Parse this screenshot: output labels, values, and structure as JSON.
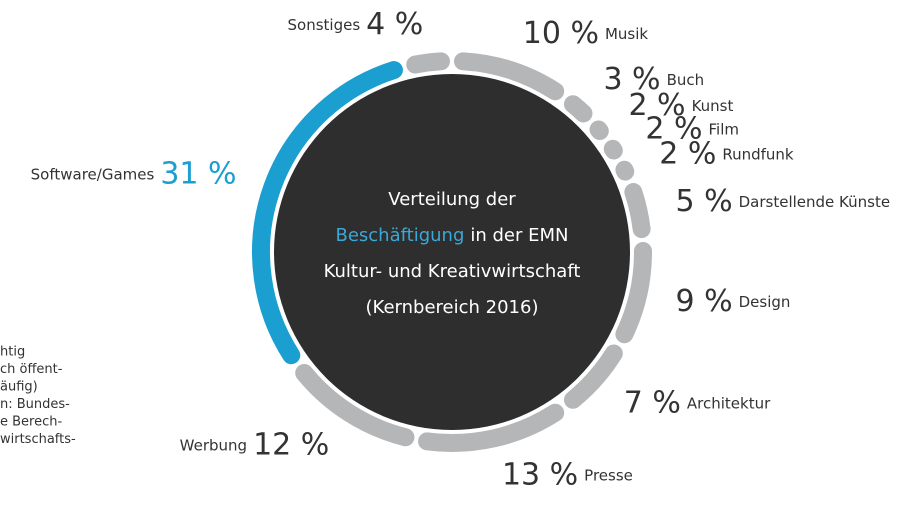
{
  "chart_data": {
    "type": "donut",
    "title_lines": [
      {
        "text": "Verteilung der"
      },
      {
        "highlight": "Beschäftigung",
        "text": "in der EMN"
      },
      {
        "text": "Kultur- und Kreativwirtschaft"
      },
      {
        "text": "(Kernbereich 2016)"
      }
    ],
    "highlight_color": "#3aa8d8",
    "categories": [
      "Musik",
      "Buch",
      "Kunst",
      "Film",
      "Rundfunk",
      "Darstellende Künste",
      "Design",
      "Architektur",
      "Presse",
      "Werbung",
      "Software/Games",
      "Sonstiges"
    ],
    "values": [
      10,
      3,
      2,
      2,
      2,
      5,
      9,
      7,
      13,
      12,
      31,
      4
    ],
    "value_labels": [
      "10 %",
      "3 %",
      "2 %",
      "2 %",
      "2 %",
      "5 %",
      "9 %",
      "7 %",
      "13 %",
      "12 %",
      "31 %",
      "4 %"
    ],
    "colors": [
      "#b5b6b8",
      "#b5b6b8",
      "#b5b6b8",
      "#b5b6b8",
      "#b5b6b8",
      "#b5b6b8",
      "#b5b6b8",
      "#b5b6b8",
      "#b5b6b8",
      "#b5b6b8",
      "#1a9fd0",
      "#b5b6b8"
    ],
    "note_lines": [
      "htig",
      "ch öffent-",
      "äufig)",
      "n: Bundes-",
      "e Berech-",
      "wirtschafts-"
    ]
  }
}
